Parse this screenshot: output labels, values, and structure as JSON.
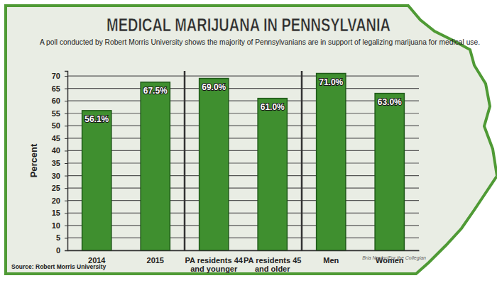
{
  "chart_data": {
    "type": "bar",
    "title": "MEDICAL MARIJUANA IN PENNSYLVANIA",
    "subtitle": "A poll conducted by Robert Morris University shows the majority of Pennsylvanians are in support of legalizing marijuana for medical use.",
    "y_label": "Percent",
    "categories": [
      "2014",
      "2015",
      "PA residents 44 and younger",
      "PA residents 45 and older",
      "Men",
      "Women"
    ],
    "values": [
      56.1,
      67.5,
      69.0,
      61.0,
      71.0,
      63.0
    ],
    "value_labels": [
      "56.1%",
      "67.5%",
      "69.0%",
      "61.0%",
      "71.0%",
      "63.0%"
    ],
    "color": "#3f8f2f",
    "ylim": [
      0,
      72
    ],
    "yticks": [
      0,
      5,
      10,
      15,
      20,
      25,
      30,
      35,
      40,
      45,
      50,
      55,
      60,
      65,
      70
    ],
    "grid": true,
    "data_labels": true,
    "source": "Source: Robert Morris University",
    "credit": "Bria Naylor/For the Collegian"
  }
}
